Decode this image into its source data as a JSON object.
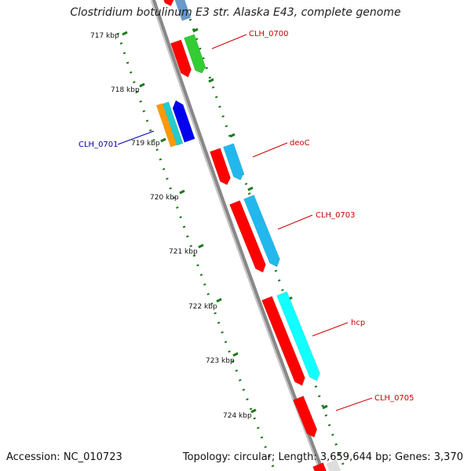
{
  "title": "Clostridium botulinum E3 str. Alaska E43, complete genome",
  "accession": "Accession: NC_010723",
  "summary": "Topology: circular; Length: 3,659,644 bp; Genes: 3,370",
  "ticks": [
    "717 kbp",
    "718 kbp",
    "719 kbp",
    "720 kbp",
    "721 kbp",
    "722 kbp",
    "723 kbp",
    "724 kbp"
  ],
  "gene_labels": [
    {
      "name": "CLH_0700",
      "color": "#cc0000"
    },
    {
      "name": "CLH_0701",
      "color": "#0000aa"
    },
    {
      "name": "deoC",
      "color": "#cc0000"
    },
    {
      "name": "CLH_0703",
      "color": "#cc0000"
    },
    {
      "name": "hcp",
      "color": "#cc0000"
    },
    {
      "name": "CLH_0705",
      "color": "#cc0000"
    }
  ],
  "colors": {
    "backbone": "#888888",
    "tick": "#1a7a1a",
    "cds_red": "#ff0000",
    "green": "#33cc33",
    "blue": "#0000ee",
    "sky": "#22b8ee",
    "cyan": "#11ffff",
    "orange": "#ff9900",
    "teal": "#22cccc"
  }
}
